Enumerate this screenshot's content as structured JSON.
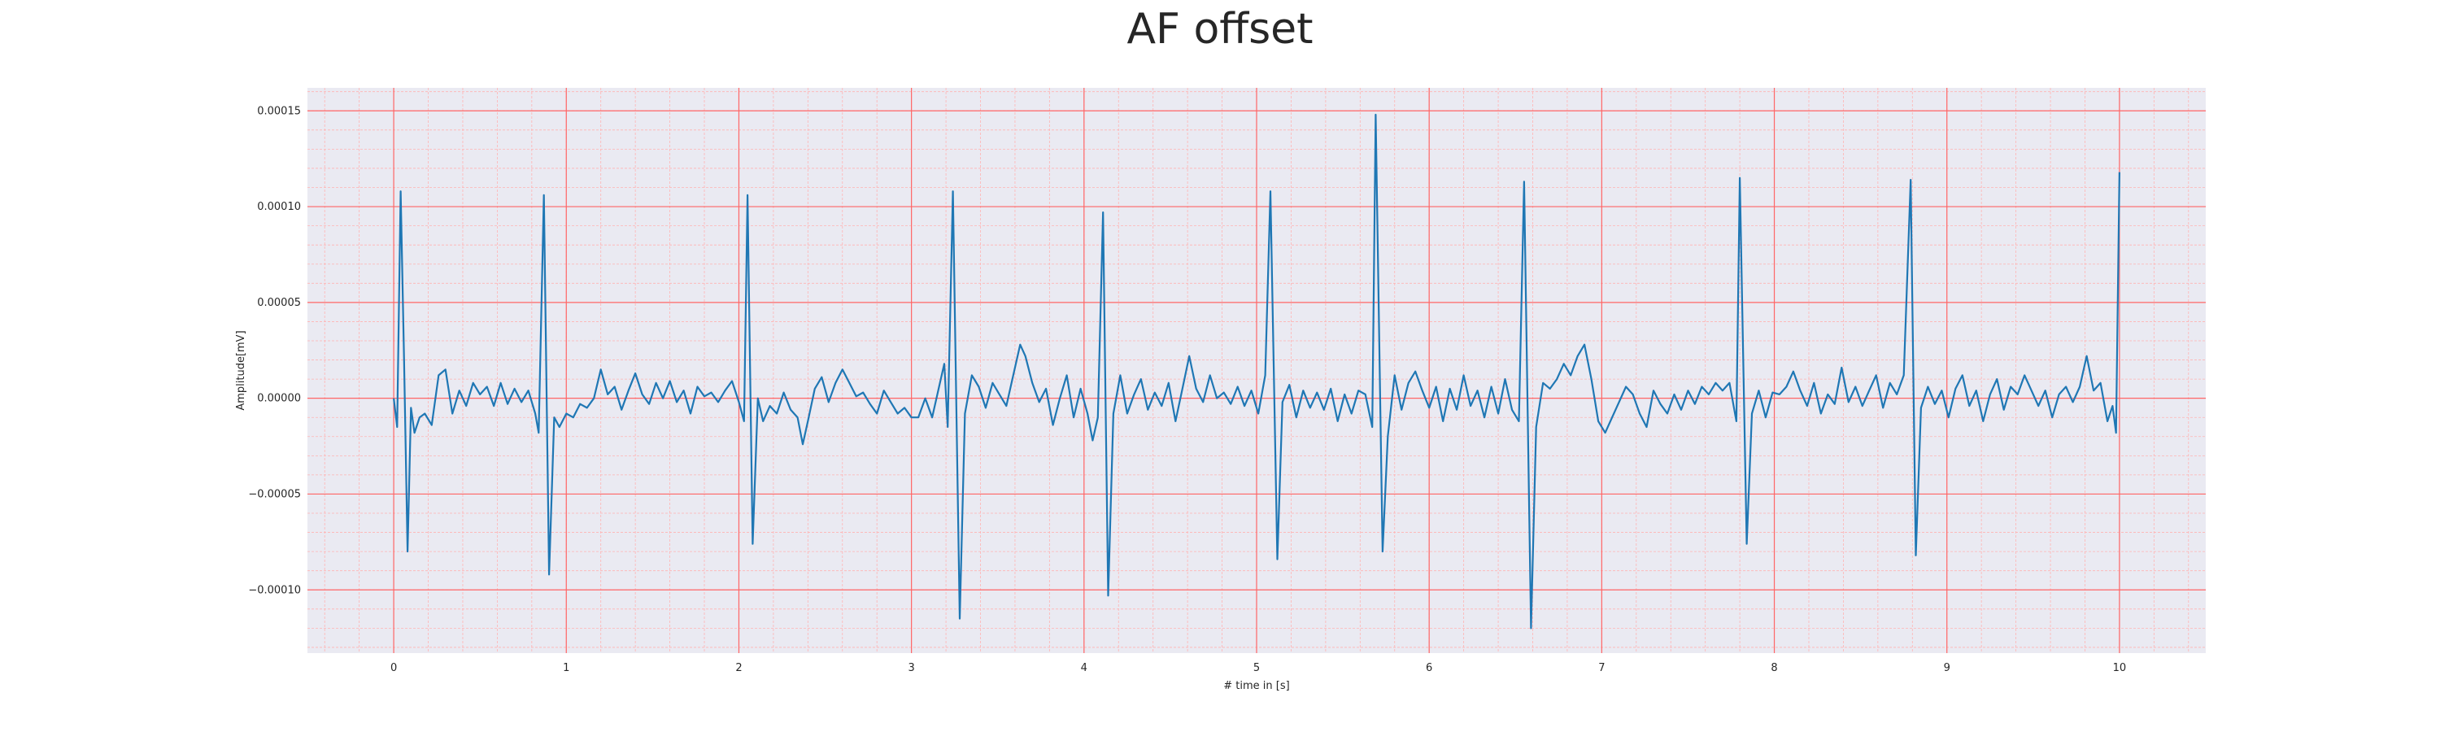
{
  "chart_data": {
    "type": "line",
    "title": "AF offset",
    "xlabel": "# time in [s]",
    "ylabel": "Amplitude[mV]",
    "xlim": [
      -0.5,
      10.5
    ],
    "ylim": [
      -0.000133,
      0.000162
    ],
    "xticks": [
      0,
      1,
      2,
      3,
      4,
      5,
      6,
      7,
      8,
      9,
      10
    ],
    "xtick_labels": [
      "0",
      "1",
      "2",
      "3",
      "4",
      "5",
      "6",
      "7",
      "8",
      "9",
      "10"
    ],
    "yticks": [
      -0.0001,
      -5e-05,
      0.0,
      5e-05,
      0.0001,
      0.00015
    ],
    "ytick_labels": [
      "−0.00010",
      "−0.00005",
      "0.00000",
      "0.00005",
      "0.00010",
      "0.00015"
    ],
    "grid": true,
    "minor_grid": true,
    "colors": {
      "line": "#1f77b4",
      "background": "#eaeaf2",
      "major_grid": "#ff6666",
      "minor_grid": "#ffb3b3"
    },
    "series": [
      {
        "values": [
          [
            0.0,
            0.0
          ],
          [
            0.02,
            -1.5e-05
          ],
          [
            0.04,
            0.000108
          ],
          [
            0.06,
            2e-05
          ],
          [
            0.08,
            -8e-05
          ],
          [
            0.1,
            -5e-06
          ],
          [
            0.12,
            -1.8e-05
          ],
          [
            0.15,
            -1e-05
          ],
          [
            0.18,
            -8e-06
          ],
          [
            0.22,
            -1.4e-05
          ],
          [
            0.26,
            1.2e-05
          ],
          [
            0.3,
            1.5e-05
          ],
          [
            0.34,
            -8e-06
          ],
          [
            0.38,
            4e-06
          ],
          [
            0.42,
            -4e-06
          ],
          [
            0.46,
            8e-06
          ],
          [
            0.5,
            2e-06
          ],
          [
            0.54,
            6e-06
          ],
          [
            0.58,
            -4e-06
          ],
          [
            0.62,
            8e-06
          ],
          [
            0.66,
            -3e-06
          ],
          [
            0.7,
            5e-06
          ],
          [
            0.74,
            -2e-06
          ],
          [
            0.78,
            4e-06
          ],
          [
            0.82,
            -8e-06
          ],
          [
            0.84,
            -1.8e-05
          ],
          [
            0.87,
            0.000106
          ],
          [
            0.9,
            -9.2e-05
          ],
          [
            0.93,
            -1e-05
          ],
          [
            0.96,
            -1.5e-05
          ],
          [
            1.0,
            -8e-06
          ],
          [
            1.04,
            -1e-05
          ],
          [
            1.08,
            -3e-06
          ],
          [
            1.12,
            -5e-06
          ],
          [
            1.16,
            0.0
          ],
          [
            1.2,
            1.5e-05
          ],
          [
            1.24,
            2e-06
          ],
          [
            1.28,
            6e-06
          ],
          [
            1.32,
            -6e-06
          ],
          [
            1.36,
            4e-06
          ],
          [
            1.4,
            1.3e-05
          ],
          [
            1.44,
            2e-06
          ],
          [
            1.48,
            -3e-06
          ],
          [
            1.52,
            8e-06
          ],
          [
            1.56,
            0.0
          ],
          [
            1.6,
            9e-06
          ],
          [
            1.64,
            -2e-06
          ],
          [
            1.68,
            4e-06
          ],
          [
            1.72,
            -8e-06
          ],
          [
            1.76,
            6e-06
          ],
          [
            1.8,
            1e-06
          ],
          [
            1.84,
            3e-06
          ],
          [
            1.88,
            -2e-06
          ],
          [
            1.92,
            4e-06
          ],
          [
            1.96,
            9e-06
          ],
          [
            2.0,
            -2e-06
          ],
          [
            2.03,
            -1.2e-05
          ],
          [
            2.05,
            0.000106
          ],
          [
            2.08,
            -7.6e-05
          ],
          [
            2.11,
            0.0
          ],
          [
            2.14,
            -1.2e-05
          ],
          [
            2.18,
            -4e-06
          ],
          [
            2.22,
            -8e-06
          ],
          [
            2.26,
            3e-06
          ],
          [
            2.3,
            -6e-06
          ],
          [
            2.34,
            -1e-05
          ],
          [
            2.37,
            -2.4e-05
          ],
          [
            2.4,
            -1.2e-05
          ],
          [
            2.44,
            5e-06
          ],
          [
            2.48,
            1.1e-05
          ],
          [
            2.52,
            -2e-06
          ],
          [
            2.56,
            8e-06
          ],
          [
            2.6,
            1.5e-05
          ],
          [
            2.64,
            8e-06
          ],
          [
            2.68,
            1e-06
          ],
          [
            2.72,
            3e-06
          ],
          [
            2.76,
            -3e-06
          ],
          [
            2.8,
            -8e-06
          ],
          [
            2.84,
            4e-06
          ],
          [
            2.88,
            -2e-06
          ],
          [
            2.92,
            -8e-06
          ],
          [
            2.96,
            -5e-06
          ],
          [
            3.0,
            -1e-05
          ],
          [
            3.04,
            -1e-05
          ],
          [
            3.08,
            0.0
          ],
          [
            3.12,
            -1e-05
          ],
          [
            3.16,
            6e-06
          ],
          [
            3.19,
            1.8e-05
          ],
          [
            3.21,
            -1.5e-05
          ],
          [
            3.24,
            0.000108
          ],
          [
            3.28,
            -0.000115
          ],
          [
            3.31,
            -8e-06
          ],
          [
            3.35,
            1.2e-05
          ],
          [
            3.39,
            6e-06
          ],
          [
            3.43,
            -5e-06
          ],
          [
            3.47,
            8e-06
          ],
          [
            3.51,
            2e-06
          ],
          [
            3.55,
            -4e-06
          ],
          [
            3.59,
            1.2e-05
          ],
          [
            3.63,
            2.8e-05
          ],
          [
            3.66,
            2.2e-05
          ],
          [
            3.7,
            8e-06
          ],
          [
            3.74,
            -2e-06
          ],
          [
            3.78,
            5e-06
          ],
          [
            3.82,
            -1.4e-05
          ],
          [
            3.86,
            0.0
          ],
          [
            3.9,
            1.2e-05
          ],
          [
            3.94,
            -1e-05
          ],
          [
            3.98,
            5e-06
          ],
          [
            4.02,
            -8e-06
          ],
          [
            4.05,
            -2.2e-05
          ],
          [
            4.08,
            -1e-05
          ],
          [
            4.11,
            9.7e-05
          ],
          [
            4.14,
            -0.000103
          ],
          [
            4.17,
            -8e-06
          ],
          [
            4.21,
            1.2e-05
          ],
          [
            4.25,
            -8e-06
          ],
          [
            4.29,
            2e-06
          ],
          [
            4.33,
            1e-05
          ],
          [
            4.37,
            -6e-06
          ],
          [
            4.41,
            3e-06
          ],
          [
            4.45,
            -4e-06
          ],
          [
            4.49,
            8e-06
          ],
          [
            4.53,
            -1.2e-05
          ],
          [
            4.57,
            5e-06
          ],
          [
            4.61,
            2.2e-05
          ],
          [
            4.65,
            5e-06
          ],
          [
            4.69,
            -2e-06
          ],
          [
            4.73,
            1.2e-05
          ],
          [
            4.77,
            0.0
          ],
          [
            4.81,
            3e-06
          ],
          [
            4.85,
            -3e-06
          ],
          [
            4.89,
            6e-06
          ],
          [
            4.93,
            -4e-06
          ],
          [
            4.97,
            4e-06
          ],
          [
            5.01,
            -8e-06
          ],
          [
            5.05,
            1.2e-05
          ],
          [
            5.08,
            0.000108
          ],
          [
            5.12,
            -8.4e-05
          ],
          [
            5.15,
            -2e-06
          ],
          [
            5.19,
            7e-06
          ],
          [
            5.23,
            -1e-05
          ],
          [
            5.27,
            4e-06
          ],
          [
            5.31,
            -5e-06
          ],
          [
            5.35,
            3e-06
          ],
          [
            5.39,
            -6e-06
          ],
          [
            5.43,
            5e-06
          ],
          [
            5.47,
            -1.2e-05
          ],
          [
            5.51,
            2e-06
          ],
          [
            5.55,
            -8e-06
          ],
          [
            5.59,
            4e-06
          ],
          [
            5.63,
            2e-06
          ],
          [
            5.67,
            -1.5e-05
          ],
          [
            5.69,
            0.000148
          ],
          [
            5.73,
            -8e-05
          ],
          [
            5.76,
            -2e-05
          ],
          [
            5.8,
            1.2e-05
          ],
          [
            5.84,
            -6e-06
          ],
          [
            5.88,
            8e-06
          ],
          [
            5.92,
            1.4e-05
          ],
          [
            5.96,
            4e-06
          ],
          [
            6.0,
            -5e-06
          ],
          [
            6.04,
            6e-06
          ],
          [
            6.08,
            -1.2e-05
          ],
          [
            6.12,
            5e-06
          ],
          [
            6.16,
            -6e-06
          ],
          [
            6.2,
            1.2e-05
          ],
          [
            6.24,
            -4e-06
          ],
          [
            6.28,
            4e-06
          ],
          [
            6.32,
            -1e-05
          ],
          [
            6.36,
            6e-06
          ],
          [
            6.4,
            -8e-06
          ],
          [
            6.44,
            1e-05
          ],
          [
            6.48,
            -6e-06
          ],
          [
            6.52,
            -1.2e-05
          ],
          [
            6.55,
            0.000113
          ],
          [
            6.59,
            -0.00012
          ],
          [
            6.62,
            -1.5e-05
          ],
          [
            6.66,
            8e-06
          ],
          [
            6.7,
            5e-06
          ],
          [
            6.74,
            1e-05
          ],
          [
            6.78,
            1.8e-05
          ],
          [
            6.82,
            1.2e-05
          ],
          [
            6.86,
            2.2e-05
          ],
          [
            6.9,
            2.8e-05
          ],
          [
            6.94,
            1e-05
          ],
          [
            6.98,
            -1.2e-05
          ],
          [
            7.02,
            -1.8e-05
          ],
          [
            7.06,
            -1e-05
          ],
          [
            7.1,
            -2e-06
          ],
          [
            7.14,
            6e-06
          ],
          [
            7.18,
            2e-06
          ],
          [
            7.22,
            -8e-06
          ],
          [
            7.26,
            -1.5e-05
          ],
          [
            7.3,
            4e-06
          ],
          [
            7.34,
            -3e-06
          ],
          [
            7.38,
            -8e-06
          ],
          [
            7.42,
            2e-06
          ],
          [
            7.46,
            -6e-06
          ],
          [
            7.5,
            4e-06
          ],
          [
            7.54,
            -3e-06
          ],
          [
            7.58,
            6e-06
          ],
          [
            7.62,
            2e-06
          ],
          [
            7.66,
            8e-06
          ],
          [
            7.7,
            4e-06
          ],
          [
            7.74,
            8e-06
          ],
          [
            7.78,
            -1.2e-05
          ],
          [
            7.8,
            0.000115
          ],
          [
            7.84,
            -7.6e-05
          ],
          [
            7.87,
            -8e-06
          ],
          [
            7.91,
            4e-06
          ],
          [
            7.95,
            -1e-05
          ],
          [
            7.99,
            3e-06
          ],
          [
            8.03,
            2e-06
          ],
          [
            8.07,
            6e-06
          ],
          [
            8.11,
            1.4e-05
          ],
          [
            8.15,
            4e-06
          ],
          [
            8.19,
            -4e-06
          ],
          [
            8.23,
            8e-06
          ],
          [
            8.27,
            -8e-06
          ],
          [
            8.31,
            2e-06
          ],
          [
            8.35,
            -3e-06
          ],
          [
            8.39,
            1.6e-05
          ],
          [
            8.43,
            -2e-06
          ],
          [
            8.47,
            6e-06
          ],
          [
            8.51,
            -4e-06
          ],
          [
            8.55,
            4e-06
          ],
          [
            8.59,
            1.2e-05
          ],
          [
            8.63,
            -5e-06
          ],
          [
            8.67,
            8e-06
          ],
          [
            8.71,
            2e-06
          ],
          [
            8.75,
            1.2e-05
          ],
          [
            8.79,
            0.000114
          ],
          [
            8.82,
            -8.2e-05
          ],
          [
            8.85,
            -5e-06
          ],
          [
            8.89,
            6e-06
          ],
          [
            8.93,
            -3e-06
          ],
          [
            8.97,
            4e-06
          ],
          [
            9.01,
            -1e-05
          ],
          [
            9.05,
            5e-06
          ],
          [
            9.09,
            1.2e-05
          ],
          [
            9.13,
            -4e-06
          ],
          [
            9.17,
            4e-06
          ],
          [
            9.21,
            -1.2e-05
          ],
          [
            9.25,
            2e-06
          ],
          [
            9.29,
            1e-05
          ],
          [
            9.33,
            -6e-06
          ],
          [
            9.37,
            6e-06
          ],
          [
            9.41,
            2e-06
          ],
          [
            9.45,
            1.2e-05
          ],
          [
            9.49,
            4e-06
          ],
          [
            9.53,
            -4e-06
          ],
          [
            9.57,
            4e-06
          ],
          [
            9.61,
            -1e-05
          ],
          [
            9.65,
            2e-06
          ],
          [
            9.69,
            6e-06
          ],
          [
            9.73,
            -2e-06
          ],
          [
            9.77,
            6e-06
          ],
          [
            9.81,
            2.2e-05
          ],
          [
            9.85,
            4e-06
          ],
          [
            9.89,
            8e-06
          ],
          [
            9.93,
            -1.2e-05
          ],
          [
            9.96,
            -4e-06
          ],
          [
            9.98,
            -1.8e-05
          ],
          [
            10.0,
            0.000118
          ]
        ]
      }
    ]
  }
}
